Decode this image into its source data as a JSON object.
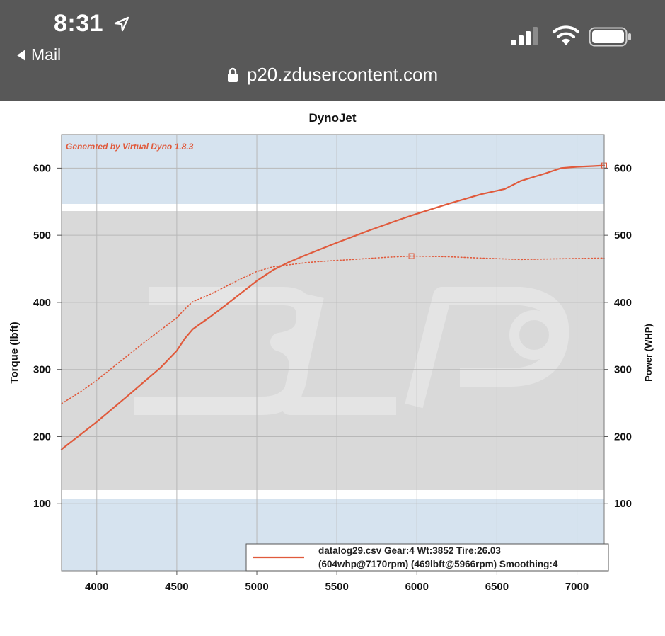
{
  "status_bar": {
    "time": "8:31",
    "back_label": "Mail",
    "url": "p20.zdusercontent.com",
    "icons": [
      "location-arrow-icon",
      "back-arrow-icon",
      "signal-icon",
      "wifi-icon",
      "battery-icon",
      "lock-icon"
    ]
  },
  "chart_data": {
    "type": "line",
    "title": "DynoJet",
    "watermark_text": "Generated by Virtual Dyno 1.8.3",
    "xlabel": "",
    "ylabel_left": "Torque (lbft)",
    "ylabel_right": "Power (WHP)",
    "xlim": [
      3780,
      7170
    ],
    "ylim": [
      0,
      650
    ],
    "x_ticks": [
      "4000",
      "4500",
      "5000",
      "5500",
      "6000",
      "6500",
      "7000"
    ],
    "y_ticks_left": [
      "100",
      "200",
      "300",
      "400",
      "500",
      "600"
    ],
    "y_ticks_right": [
      "100",
      "200",
      "300",
      "400",
      "500",
      "600"
    ],
    "grid": true,
    "colors": {
      "series": "#e05a3c",
      "band_light": "#d6e3ef",
      "band_mid": "#d9d9d9",
      "grid": "#b8b8b8",
      "title_watermark": "#e05a3c"
    },
    "legend": {
      "placement": "bottom-right",
      "line1": "datalog29.csv Gear:4 Wt:3852 Tire:26.03",
      "line2": "(604whp@7170rpm)  (469lbft@5966rpm)  Smoothing:4"
    },
    "series": [
      {
        "name": "",
        "kind": "power",
        "style": "solid",
        "x": [
          3780,
          4000,
          4200,
          4400,
          4500,
          4550,
          4600,
          4700,
          4800,
          5000,
          5100,
          5200,
          5300,
          5500,
          5700,
          5900,
          6000,
          6200,
          6400,
          6550,
          6650,
          6800,
          6900,
          7000,
          7100,
          7170
        ],
        "y": [
          181,
          222,
          262,
          303,
          328,
          346,
          360,
          377,
          395,
          432,
          448,
          460,
          470,
          489,
          507,
          524,
          532,
          547,
          561,
          569,
          581,
          592,
          600,
          602,
          603,
          604
        ]
      },
      {
        "name": "",
        "kind": "torque",
        "style": "dotted",
        "x": [
          3780,
          3900,
          4000,
          4100,
          4200,
          4300,
          4400,
          4500,
          4550,
          4600,
          4700,
          4800,
          4900,
          5000,
          5100,
          5200,
          5300,
          5400,
          5600,
          5800,
          5966,
          6200,
          6400,
          6650,
          6900,
          7170
        ],
        "y": [
          249,
          267,
          284,
          303,
          322,
          341,
          359,
          377,
          390,
          401,
          411,
          423,
          435,
          446,
          453,
          456,
          459,
          461,
          464,
          467,
          469,
          468,
          466,
          464,
          465,
          466
        ]
      }
    ],
    "markers": [
      {
        "x": 7170,
        "y": 604
      },
      {
        "x": 5966,
        "y": 469
      }
    ]
  }
}
